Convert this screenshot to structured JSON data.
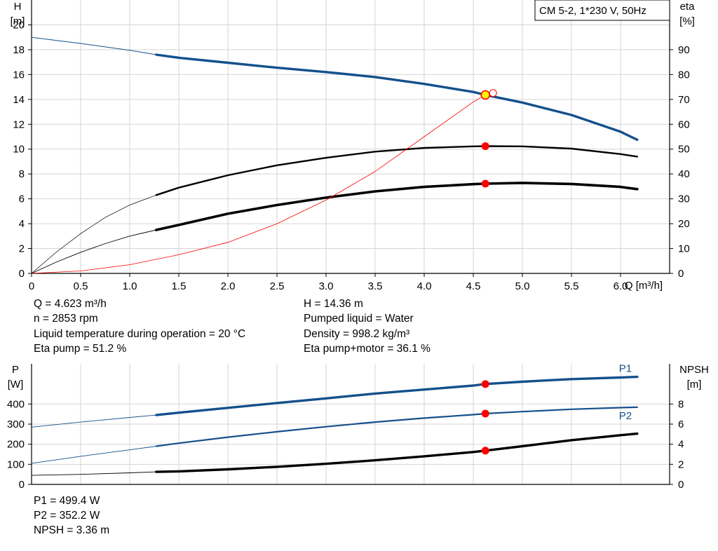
{
  "colors": {
    "head_curve": "#14508C",
    "power_curve": "#14508C",
    "efficiency_curve": "#000000",
    "npsh_curve": "#000000",
    "eta_ring": "#FF0000",
    "duty_point": "#FF0000",
    "duty_point_head_fill": "#FFF200",
    "grid": "#D4D4D4"
  },
  "info": {
    "flow": "Q = 4.623 m³/h",
    "head": "H = 14.36 m",
    "speed": "n = 2853 rpm",
    "pumped_liquid": "Pumped liquid = Water",
    "liquid_temperature": "Liquid temperature during operation = 20 °C",
    "density": "Density = 998.2 kg/m³",
    "eta_pump": "Eta pump = 51.2 %",
    "eta_pump_motor": "Eta pump+motor = 36.1 %",
    "p1": "P1 = 499.4 W",
    "p2": "P2 = 352.2 W",
    "npsh": "NPSH = 3.36 m"
  },
  "chart_data": [
    {
      "type": "line",
      "legend_box": "CM 5-2, 1*230 V, 50Hz",
      "xlabel": "Q [m³/h]",
      "ylabel_left": [
        "H",
        "[m]"
      ],
      "ylabel_right": [
        "eta",
        "[%]"
      ],
      "xlim": [
        0,
        6.5
      ],
      "ylim_left": [
        0,
        22
      ],
      "ylim_right": [
        0,
        110
      ],
      "x_ticks": [
        "0",
        "0.5",
        "1.0",
        "1.5",
        "2.0",
        "2.5",
        "3.0",
        "3.5",
        "4.0",
        "4.5",
        "5.0",
        "5.5",
        "6.0"
      ],
      "y_ticks_left": [
        "0",
        "2",
        "4",
        "6",
        "8",
        "10",
        "12",
        "14",
        "16",
        "18",
        "20"
      ],
      "y_ticks_right": [
        "0",
        "10",
        "20",
        "30",
        "40",
        "50",
        "60",
        "70",
        "80",
        "90"
      ],
      "grid": true,
      "duty_point": {
        "q": 4.623,
        "h": 14.36,
        "eta_pump": 51.2,
        "eta_pump_motor": 36.1
      },
      "series": [
        {
          "axis": "left",
          "style": "head",
          "extrapolated": {
            "x": [
              0,
              0.5,
              1.0,
              1.27
            ],
            "y": [
              19.0,
              18.5,
              17.95,
              17.6
            ]
          },
          "x": [
            1.27,
            1.5,
            2.0,
            2.5,
            3.0,
            3.5,
            4.0,
            4.5,
            4.623,
            5.0,
            5.5,
            6.0,
            6.17
          ],
          "y": [
            17.6,
            17.35,
            16.95,
            16.55,
            16.2,
            15.8,
            15.25,
            14.6,
            14.36,
            13.75,
            12.75,
            11.4,
            10.75
          ]
        },
        {
          "axis": "right",
          "style": "eta_pump",
          "extrapolated": {
            "x": [
              0,
              0.25,
              0.5,
              0.75,
              1.0,
              1.27
            ],
            "y": [
              0,
              8.5,
              16,
              22.5,
              27.5,
              31.5
            ]
          },
          "x": [
            1.27,
            1.5,
            2.0,
            2.5,
            3.0,
            3.5,
            4.0,
            4.5,
            4.623,
            5.0,
            5.5,
            6.0,
            6.17
          ],
          "y": [
            31.5,
            34.5,
            39.5,
            43.5,
            46.5,
            49,
            50.5,
            51.1,
            51.2,
            51.1,
            50.2,
            48,
            47
          ]
        },
        {
          "axis": "right",
          "style": "eta_pump_motor",
          "extrapolated": {
            "x": [
              0,
              0.25,
              0.5,
              0.75,
              1.0,
              1.27
            ],
            "y": [
              0,
              4.5,
              8.5,
              12,
              15,
              17.5
            ]
          },
          "x": [
            1.27,
            1.5,
            2.0,
            2.5,
            3.0,
            3.5,
            4.0,
            4.5,
            4.623,
            5.0,
            5.5,
            6.0,
            6.17
          ],
          "y": [
            17.5,
            19.5,
            24,
            27.5,
            30.5,
            33,
            34.8,
            35.9,
            36.1,
            36.4,
            36.0,
            34.8,
            33.9
          ]
        },
        {
          "axis": "right",
          "style": "eta_ring",
          "x": [
            0,
            0.5,
            1.0,
            1.5,
            2.0,
            2.5,
            3.0,
            3.5,
            4.0,
            4.5,
            4.63
          ],
          "y": [
            0,
            1,
            3.5,
            7.5,
            12.5,
            20,
            29.5,
            41,
            55,
            69,
            72
          ]
        }
      ]
    },
    {
      "type": "line",
      "ylabel_left": [
        "P",
        "[W]"
      ],
      "ylabel_right": [
        "NPSH",
        "[m]"
      ],
      "xlim": [
        0,
        6.5
      ],
      "ylim_left": [
        0,
        600
      ],
      "ylim_right": [
        0,
        12
      ],
      "y_ticks_left": [
        "0",
        "100",
        "200",
        "300",
        "400"
      ],
      "y_ticks_right": [
        "0",
        "2",
        "4",
        "6",
        "8"
      ],
      "grid": true,
      "duty_point": {
        "q": 4.623,
        "p1": 499.4,
        "p2": 352.2,
        "npsh": 3.36
      },
      "series": [
        {
          "name": "P1",
          "axis": "left",
          "style": "p1",
          "extrapolated": {
            "x": [
              0,
              0.5,
              1.0,
              1.27
            ],
            "y": [
              285,
              310,
              333,
              345
            ]
          },
          "x": [
            1.27,
            1.5,
            2.0,
            2.5,
            3.0,
            3.5,
            4.0,
            4.5,
            4.623,
            5.0,
            5.5,
            6.0,
            6.17
          ],
          "y": [
            345,
            357,
            381,
            405,
            428,
            452,
            472,
            492,
            499.4,
            511,
            524,
            532,
            535
          ]
        },
        {
          "name": "P2",
          "axis": "left",
          "style": "p2",
          "extrapolated": {
            "x": [
              0,
              0.5,
              1.0,
              1.27
            ],
            "y": [
              105,
              140,
              172,
              190
            ]
          },
          "x": [
            1.27,
            1.5,
            2.0,
            2.5,
            3.0,
            3.5,
            4.0,
            4.5,
            4.623,
            5.0,
            5.5,
            6.0,
            6.17
          ],
          "y": [
            190,
            205,
            235,
            262,
            287,
            310,
            330,
            347,
            352.2,
            362,
            374,
            382,
            384
          ]
        },
        {
          "axis": "right",
          "style": "npsh",
          "extrapolated": {
            "x": [
              0,
              0.5,
              1.0,
              1.27
            ],
            "y": [
              0.9,
              1.0,
              1.15,
              1.25
            ]
          },
          "x": [
            1.27,
            1.5,
            2.0,
            2.5,
            3.0,
            3.5,
            4.0,
            4.5,
            4.623,
            5.0,
            5.5,
            6.0,
            6.17
          ],
          "y": [
            1.25,
            1.3,
            1.5,
            1.75,
            2.05,
            2.4,
            2.8,
            3.22,
            3.36,
            3.8,
            4.4,
            4.9,
            5.05
          ]
        }
      ]
    }
  ]
}
